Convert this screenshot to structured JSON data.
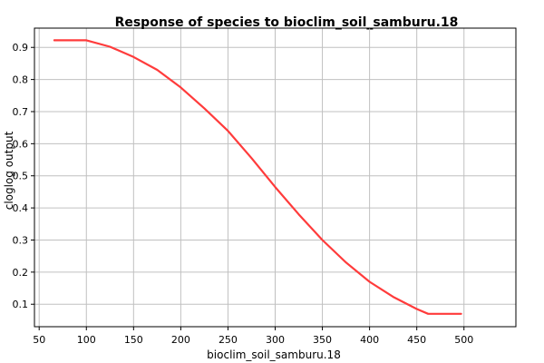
{
  "chart_data": {
    "type": "line",
    "title": "Response of species to bioclim_soil_samburu.18",
    "xlabel": "bioclim_soil_samburu.18",
    "ylabel": "cloglog output",
    "xlim": [
      45,
      555
    ],
    "ylim": [
      0.03,
      0.96
    ],
    "xticks": [
      50,
      100,
      150,
      200,
      250,
      300,
      350,
      400,
      450,
      500
    ],
    "yticks": [
      0.1,
      0.2,
      0.3,
      0.4,
      0.5,
      0.6,
      0.7,
      0.8,
      0.9
    ],
    "xtick_labels": [
      "50",
      "100",
      "150",
      "200",
      "250",
      "300",
      "350",
      "400",
      "450",
      "500"
    ],
    "ytick_labels": [
      "0.1",
      "0.2",
      "0.3",
      "0.4",
      "0.5",
      "0.6",
      "0.7",
      "0.8",
      "0.9"
    ],
    "grid": true,
    "series": [
      {
        "color": "#ff3b3b",
        "x": [
          66,
          100,
          125,
          150,
          175,
          200,
          225,
          250,
          275,
          300,
          325,
          350,
          375,
          400,
          425,
          450,
          462,
          497
        ],
        "y": [
          0.922,
          0.922,
          0.902,
          0.87,
          0.83,
          0.775,
          0.71,
          0.64,
          0.555,
          0.465,
          0.38,
          0.3,
          0.23,
          0.17,
          0.123,
          0.085,
          0.07,
          0.07
        ]
      }
    ]
  }
}
